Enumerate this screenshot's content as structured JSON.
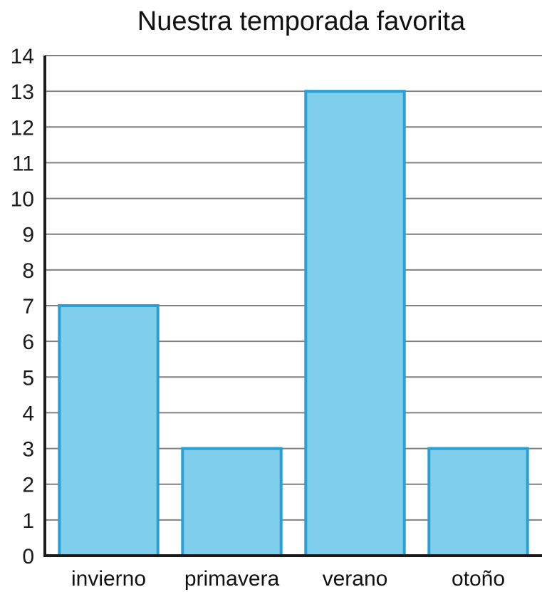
{
  "chart_data": {
    "type": "bar",
    "title": "Nuestra temporada favorita",
    "xlabel": "",
    "ylabel": "",
    "categories": [
      "invierno",
      "primavera",
      "verano",
      "otoño"
    ],
    "values": [
      7,
      3,
      13,
      3
    ],
    "ylim": [
      0,
      14
    ],
    "yticks": [
      0,
      1,
      2,
      3,
      4,
      5,
      6,
      7,
      8,
      9,
      10,
      11,
      12,
      13,
      14
    ],
    "grid": true,
    "legend": "none"
  },
  "colors": {
    "bar_fill": "#7fcfec",
    "bar_stroke": "#2a9fd6",
    "grid": "#808080",
    "axis": "#1a1a1a"
  }
}
